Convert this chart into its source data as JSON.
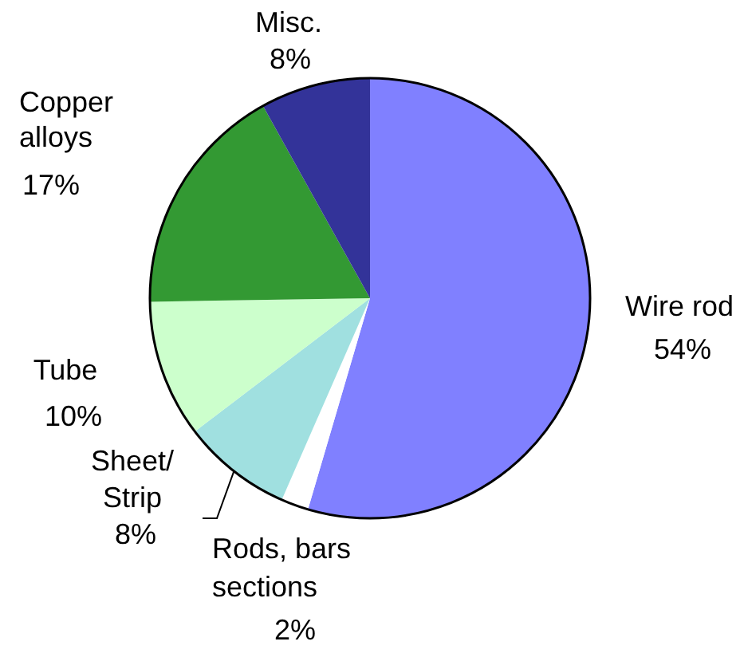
{
  "chart_data": {
    "type": "pie",
    "categories": [
      "Wire rod",
      "Rods, bars sections",
      "Sheet/Strip",
      "Tube",
      "Copper alloys",
      "Misc."
    ],
    "values": [
      54,
      2,
      8,
      10,
      17,
      8
    ],
    "value_labels": [
      "54%",
      "2%",
      "8%",
      "10%",
      "17%",
      "8%"
    ],
    "colors": [
      "#8080ff",
      "#ffffff",
      "#a0e0e0",
      "#ccffcc",
      "#339933",
      "#333399"
    ]
  }
}
